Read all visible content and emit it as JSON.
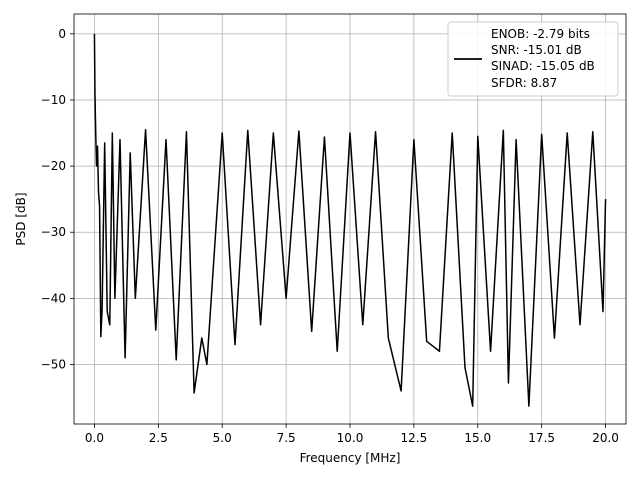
{
  "chart_data": {
    "type": "line",
    "title": "",
    "xlabel": "Frequency [MHz]",
    "ylabel": "PSD [dB]",
    "xlim": [
      -0.8,
      20.8
    ],
    "ylim": [
      -59,
      3
    ],
    "grid": true,
    "xticks": [
      0.0,
      2.5,
      5.0,
      7.5,
      10.0,
      12.5,
      15.0,
      17.5,
      20.0
    ],
    "xtick_labels": [
      "0.0",
      "2.5",
      "5.0",
      "7.5",
      "10.0",
      "12.5",
      "15.0",
      "17.5",
      "20.0"
    ],
    "yticks": [
      0,
      -10,
      -20,
      -30,
      -40,
      -50
    ],
    "ytick_labels": [
      "0",
      "−10",
      "−20",
      "−30",
      "−40",
      "−50"
    ],
    "legend_position": "top-right",
    "legend": {
      "enob": "ENOB: -2.79 bits",
      "snr": "SNR: -15.01 dB",
      "sinad": "SINAD: -15.05 dB",
      "sfdr": "SFDR: 8.87"
    },
    "series": [
      {
        "color": "#000000",
        "x": [
          0.0,
          0.02,
          0.05,
          0.08,
          0.12,
          0.16,
          0.2,
          0.25,
          0.3,
          0.4,
          0.5,
          0.6,
          0.7,
          0.8,
          1.0,
          1.2,
          1.4,
          1.6,
          2.0,
          2.4,
          2.8,
          3.2,
          3.6,
          3.9,
          4.2,
          4.4,
          5.0,
          5.5,
          6.0,
          6.5,
          7.0,
          7.5,
          8.0,
          8.5,
          9.0,
          9.5,
          10.0,
          10.5,
          11.0,
          11.5,
          12.0,
          12.5,
          13.0,
          13.5,
          14.0,
          14.5,
          14.8,
          15.0,
          15.5,
          16.0,
          16.2,
          16.5,
          17.0,
          17.5,
          18.0,
          18.5,
          19.0,
          19.5,
          19.9,
          20.0
        ],
        "y": [
          0.0,
          -9.0,
          -15.0,
          -20.0,
          -17.0,
          -24.0,
          -26.0,
          -45.8,
          -41.6,
          -16.5,
          -42.0,
          -44.0,
          -15.0,
          -40.0,
          -16.0,
          -49.0,
          -18.0,
          -40.0,
          -14.5,
          -44.8,
          -16.0,
          -49.3,
          -14.8,
          -54.3,
          -46.0,
          -50.0,
          -15.0,
          -47.0,
          -14.6,
          -44.0,
          -15.0,
          -40.0,
          -14.7,
          -45.0,
          -15.6,
          -48.0,
          -15.0,
          -44.0,
          -14.8,
          -46.0,
          -54.0,
          -16.0,
          -46.5,
          -48.0,
          -15.0,
          -50.5,
          -56.3,
          -15.5,
          -48.0,
          -14.6,
          -52.8,
          -16.0,
          -56.3,
          -15.2,
          -46.0,
          -15.0,
          -44.0,
          -14.8,
          -42.0,
          -25.0
        ]
      }
    ]
  }
}
